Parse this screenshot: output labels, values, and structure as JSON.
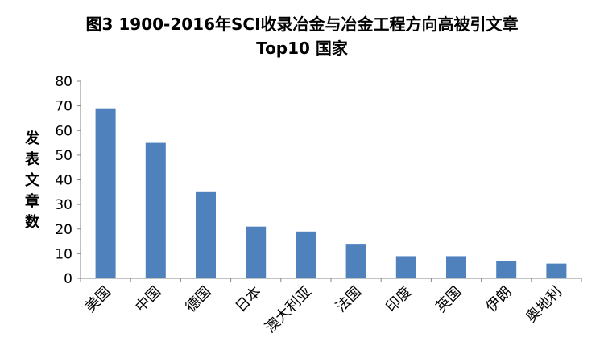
{
  "chart_data": {
    "type": "bar",
    "title_line1": "图3 1900-2016年SCI收录冶金与冶金工程方向高被引文章",
    "title_line2": "Top10 国家",
    "xlabel": "",
    "ylabel": "发表文章数",
    "ylim": [
      0,
      80
    ],
    "yticks": [
      0,
      10,
      20,
      30,
      40,
      50,
      60,
      70,
      80
    ],
    "categories": [
      "美国",
      "中国",
      "德国",
      "日本",
      "澳大利亚",
      "法国",
      "印度",
      "英国",
      "伊朗",
      "奥地利"
    ],
    "values": [
      69,
      55,
      35,
      21,
      19,
      14,
      9,
      9,
      7,
      6
    ],
    "bar_color": "#4F81BD",
    "grid": false,
    "legend": "none"
  }
}
